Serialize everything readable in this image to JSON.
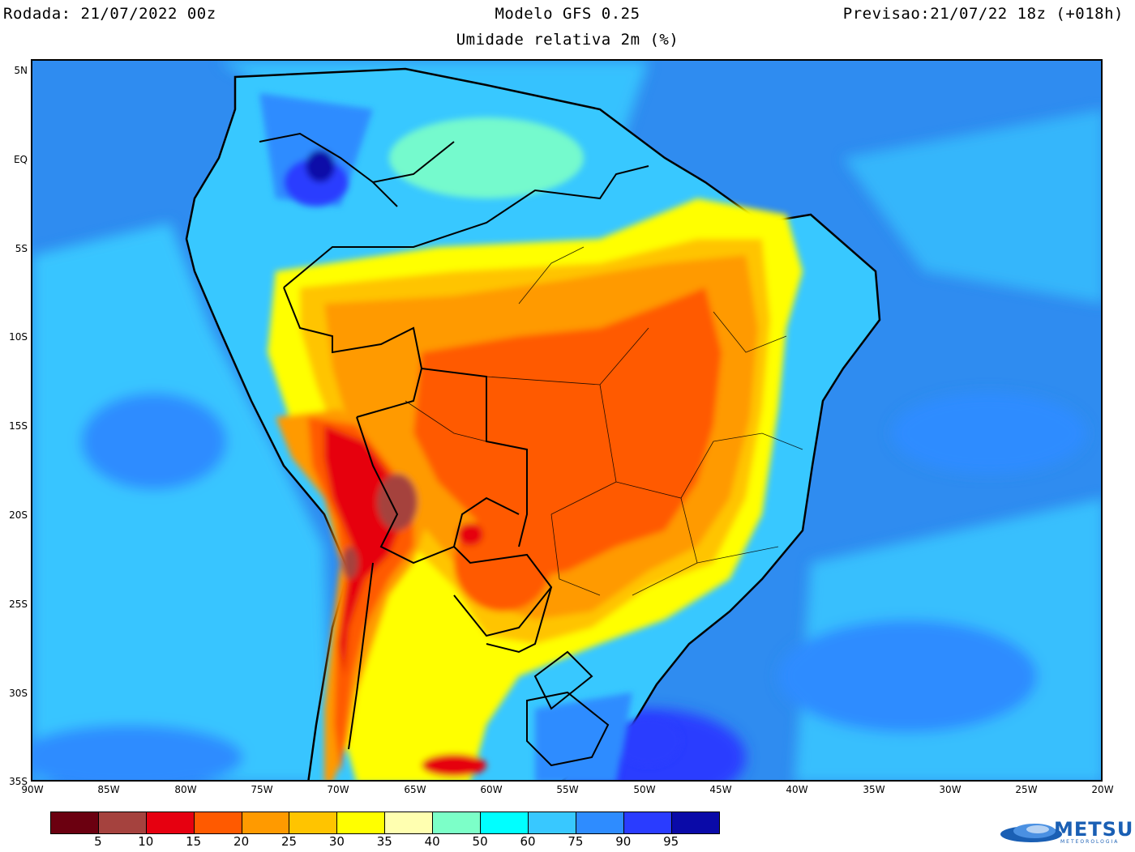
{
  "header": {
    "left": "Rodada: 21/07/2022 00z",
    "center": "Modelo GFS 0.25",
    "right": "Previsao:21/07/22 18z (+018h)",
    "subtitle": "Umidade relativa 2m (%)"
  },
  "map": {
    "lat_labels": [
      "5N",
      "EQ",
      "5S",
      "10S",
      "15S",
      "20S",
      "25S",
      "30S",
      "35S"
    ],
    "lon_labels": [
      "90W",
      "85W",
      "80W",
      "75W",
      "70W",
      "65W",
      "60W",
      "55W",
      "50W",
      "45W",
      "40W",
      "35W",
      "30W",
      "25W",
      "20W"
    ],
    "extent": {
      "lon_min": -90,
      "lon_max": -20,
      "lat_min": -35,
      "lat_max": 5
    }
  },
  "legend": {
    "colors": [
      "#6b0010",
      "#a5423e",
      "#e60010",
      "#ff5a00",
      "#ff9a00",
      "#ffc400",
      "#ffff00",
      "#ffffb0",
      "#7cffc8",
      "#00ffff",
      "#38c8ff",
      "#2e8cff",
      "#2a3cff",
      "#0a0aa8"
    ],
    "labels": [
      "5",
      "10",
      "15",
      "20",
      "25",
      "30",
      "35",
      "40",
      "50",
      "60",
      "75",
      "90",
      "95"
    ]
  },
  "logo": {
    "text": "METSUL",
    "sub": "METEOROLOGIA"
  }
}
